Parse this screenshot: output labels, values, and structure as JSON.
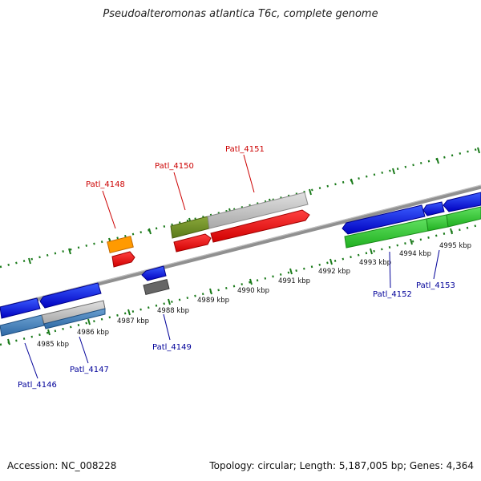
{
  "title": "Pseudoalteromonas atlantica T6c, complete genome",
  "footer": {
    "accession": "Accession: NC_008228",
    "summary": "Topology: circular; Length: 5,187,005 bp; Genes: 4,364"
  },
  "ruler_labels": [
    "4985 kbp",
    "4986 kbp",
    "4987 kbp",
    "4988 kbp",
    "4989 kbp",
    "4990 kbp",
    "4991 kbp",
    "4992 kbp",
    "4993 kbp",
    "4994 kbp",
    "4995 kbp"
  ],
  "gene_labels": {
    "patl_4146": "Patl_4146",
    "patl_4147": "Patl_4147",
    "patl_4148": "Patl_4148",
    "patl_4149": "Patl_4149",
    "patl_4150": "Patl_4150",
    "patl_4151": "Patl_4151",
    "patl_4152": "Patl_4152",
    "patl_4153": "Patl_4153"
  },
  "colors": {
    "forward_label": "#cc0000",
    "reverse_label": "#000099",
    "tick": "#1a7a1a",
    "backbone": "#888888"
  }
}
